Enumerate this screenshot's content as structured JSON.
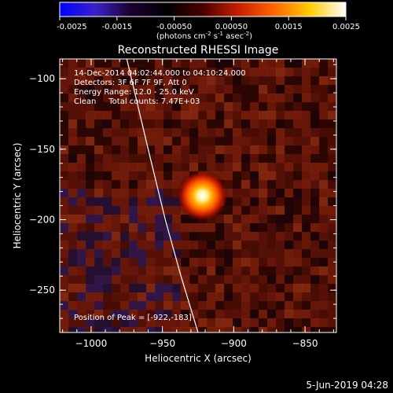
{
  "colorbar": {
    "ticks": [
      "-0.0025",
      "-0.0015",
      "-0.00050",
      "0.00050",
      "0.0015",
      "0.0025"
    ],
    "units_main": "(photons cm",
    "units_sup1": "-2",
    "units_mid1": " s",
    "units_sup2": "-1",
    "units_mid2": " asec",
    "units_sup3": "-2",
    "units_end": ")"
  },
  "annotations": {
    "time": "14-Dec-2014 04:02:44.000 to 04:10:24.000",
    "detectors": "Detectors: 3F 6F 7F 9F, Att 0",
    "energy": "Energy Range: 12.0 - 25.0 keV",
    "clean": "Clean     Total counts: 7.47E+03",
    "peak": "Position of Peak = [-922,-183]"
  },
  "footer_date": "5-Jun-2019 04:28",
  "chart_data": {
    "type": "heatmap",
    "title": "Reconstructed RHESSI Image",
    "xlabel": "Heliocentric X (arcsec)",
    "ylabel": "Heliocentric Y (arcsec)",
    "xlim": [
      -1022,
      -828
    ],
    "ylim": [
      -280,
      -86
    ],
    "x_ticks": [
      -1000,
      -950,
      -900,
      -850
    ],
    "y_ticks": [
      -100,
      -150,
      -200,
      -250
    ],
    "x_tick_labels": [
      "−1000",
      "−950",
      "−900",
      "−850"
    ],
    "y_tick_labels": [
      "−100",
      "−150",
      "−200",
      "−250"
    ],
    "colorbar_range": [
      -0.0025,
      0.0025
    ],
    "peak": {
      "x": -922,
      "y": -183
    },
    "limb_line": [
      [
        -975,
        -86
      ],
      [
        -960,
        -150
      ],
      [
        -948,
        -200
      ],
      [
        -937,
        -240
      ],
      [
        -925,
        -280
      ]
    ],
    "colors": {
      "colorbar_stops": [
        "#0000ff",
        "#3a22c8",
        "#1a0030",
        "#000000",
        "#4a0000",
        "#c81e00",
        "#ff6600",
        "#ffcc00",
        "#ffffff"
      ]
    }
  }
}
